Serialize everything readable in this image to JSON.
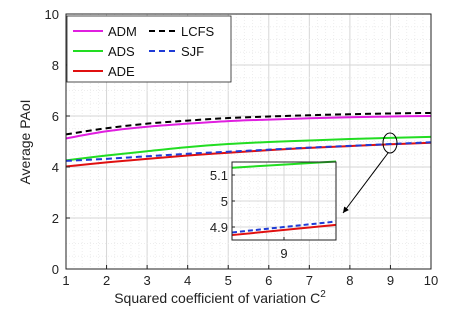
{
  "chart_data": {
    "type": "line",
    "xlabel": "Squared coefficient of variation C",
    "xlabel_sup": "2",
    "ylabel": "Average PAoI",
    "xlim": [
      1,
      10
    ],
    "ylim": [
      0,
      10
    ],
    "xticks": [
      "1",
      "2",
      "3",
      "4",
      "5",
      "6",
      "7",
      "8",
      "9",
      "10"
    ],
    "yticks": [
      "0",
      "2",
      "4",
      "6",
      "8",
      "10"
    ],
    "grid": "on (major and minor)",
    "legend_placement": "top-left",
    "x": [
      1,
      2,
      3,
      4,
      5,
      6,
      7,
      8,
      9,
      10
    ],
    "series": [
      {
        "name": "ADM",
        "color": "#e01fe0",
        "style": "solid",
        "values": [
          5.12,
          5.4,
          5.58,
          5.7,
          5.8,
          5.86,
          5.91,
          5.95,
          5.98,
          6.0
        ]
      },
      {
        "name": "LCFS",
        "color": "#000000",
        "style": "dashed",
        "values": [
          5.28,
          5.52,
          5.7,
          5.82,
          5.92,
          5.98,
          6.03,
          6.07,
          6.1,
          6.12
        ]
      },
      {
        "name": "ADS",
        "color": "#22dd22",
        "style": "solid",
        "values": [
          4.26,
          4.45,
          4.62,
          4.78,
          4.9,
          4.98,
          5.04,
          5.1,
          5.14,
          5.18
        ]
      },
      {
        "name": "SJF",
        "color": "#1f3bd6",
        "style": "dashed",
        "values": [
          4.24,
          4.32,
          4.42,
          4.52,
          4.6,
          4.68,
          4.76,
          4.83,
          4.9,
          4.97
        ]
      },
      {
        "name": "ADE",
        "color": "#e01010",
        "style": "solid",
        "values": [
          4.02,
          4.18,
          4.32,
          4.45,
          4.56,
          4.66,
          4.75,
          4.82,
          4.89,
          4.95
        ]
      }
    ],
    "inset": {
      "xtick": "9",
      "yticks": [
        "5.1",
        "5",
        "4.9"
      ],
      "xlim": [
        8.7,
        9.3
      ],
      "ylim": [
        4.85,
        5.15
      ],
      "zoom_center": [
        9,
        5.0
      ]
    }
  }
}
